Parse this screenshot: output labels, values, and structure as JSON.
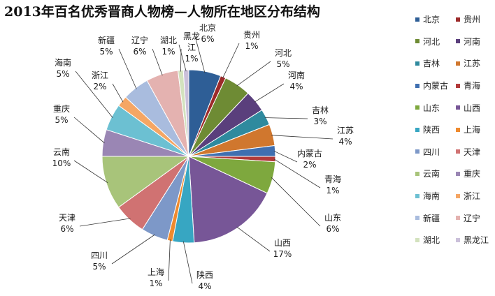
{
  "chart_data": {
    "type": "pie",
    "title": "2013年百名优秀晋商人物榜—人物所在地区分布结构",
    "slices": [
      {
        "name": "北京",
        "value": 6,
        "label": "6%",
        "color": "#2E5E96"
      },
      {
        "name": "贵州",
        "value": 1,
        "label": "1%",
        "color": "#9C2A2A"
      },
      {
        "name": "河北",
        "value": 5,
        "label": "5%",
        "color": "#6E8B34"
      },
      {
        "name": "河南",
        "value": 4,
        "label": "4%",
        "color": "#5A3F7C"
      },
      {
        "name": "吉林",
        "value": 3,
        "label": "3%",
        "color": "#2F8A9E"
      },
      {
        "name": "江苏",
        "value": 4,
        "label": "4%",
        "color": "#D0772E"
      },
      {
        "name": "内蒙古",
        "value": 2,
        "label": "2%",
        "color": "#3F6FB0"
      },
      {
        "name": "青海",
        "value": 1,
        "label": "1%",
        "color": "#B23A3A"
      },
      {
        "name": "山东",
        "value": 6,
        "label": "6%",
        "color": "#7EA83E"
      },
      {
        "name": "山西",
        "value": 17,
        "label": "17%",
        "color": "#775697"
      },
      {
        "name": "陕西",
        "value": 4,
        "label": "4%",
        "color": "#37A6C2"
      },
      {
        "name": "上海",
        "value": 1,
        "label": "1%",
        "color": "#EE8A2E"
      },
      {
        "name": "四川",
        "value": 5,
        "label": "5%",
        "color": "#7D98C8"
      },
      {
        "name": "天津",
        "value": 6,
        "label": "6%",
        "color": "#D07272"
      },
      {
        "name": "云南",
        "value": 10,
        "label": "10%",
        "color": "#A8C47A"
      },
      {
        "name": "重庆",
        "value": 5,
        "label": "5%",
        "color": "#9A86B4"
      },
      {
        "name": "海南",
        "value": 5,
        "label": "5%",
        "color": "#6CC0D2"
      },
      {
        "name": "浙江",
        "value": 2,
        "label": "2%",
        "color": "#F5A664"
      },
      {
        "name": "新疆",
        "value": 5,
        "label": "5%",
        "color": "#A9BCDE"
      },
      {
        "name": "辽宁",
        "value": 6,
        "label": "6%",
        "color": "#E4B2B0"
      },
      {
        "name": "湖北",
        "value": 1,
        "label": "1%",
        "color": "#D3E2BE"
      },
      {
        "name": "黑龙江",
        "value": 1,
        "label": "1%",
        "color": "#CBC0DA"
      }
    ],
    "legend_order": [
      "北京",
      "贵州",
      "河北",
      "河南",
      "吉林",
      "江苏",
      "内蒙古",
      "青海",
      "山东",
      "山西",
      "陕西",
      "上海",
      "四川",
      "天津",
      "云南",
      "重庆",
      "海南",
      "浙江",
      "新疆",
      "辽宁",
      "湖北",
      "黑龙江"
    ],
    "legend_position": "right",
    "start_angle": "top",
    "direction": "clockwise"
  }
}
